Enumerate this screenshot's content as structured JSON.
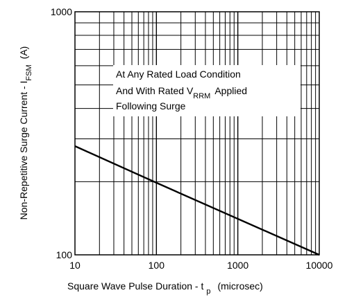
{
  "chart_data": {
    "type": "line",
    "x_scale": "log",
    "y_scale": "log",
    "xlim": [
      10,
      10000
    ],
    "ylim": [
      100,
      1000
    ],
    "grid": true,
    "xlabel": "Square Wave Pulse Duration - t",
    "xlabel_sub": "p",
    "xlabel_unit": "(microsec)",
    "ylabel": "Non-Repetitive Surge Current - I",
    "ylabel_sub": "FSM",
    "ylabel_unit": "(A)",
    "x_ticks": [
      {
        "value": 10,
        "label": "10"
      },
      {
        "value": 100,
        "label": "100"
      },
      {
        "value": 1000,
        "label": "1000"
      },
      {
        "value": 10000,
        "label": "10000"
      }
    ],
    "y_ticks": [
      {
        "value": 100,
        "label": "100"
      },
      {
        "value": 1000,
        "label": "1000"
      }
    ],
    "series": [
      {
        "x": [
          10,
          100,
          10000
        ],
        "y": [
          280,
          198,
          100
        ]
      }
    ],
    "annotation": {
      "line1": "At Any Rated Load Condition",
      "line2_pre": "And With Rated V",
      "line2_sub": "RRM",
      "line2_post": "Applied",
      "line3": "Following Surge"
    }
  }
}
